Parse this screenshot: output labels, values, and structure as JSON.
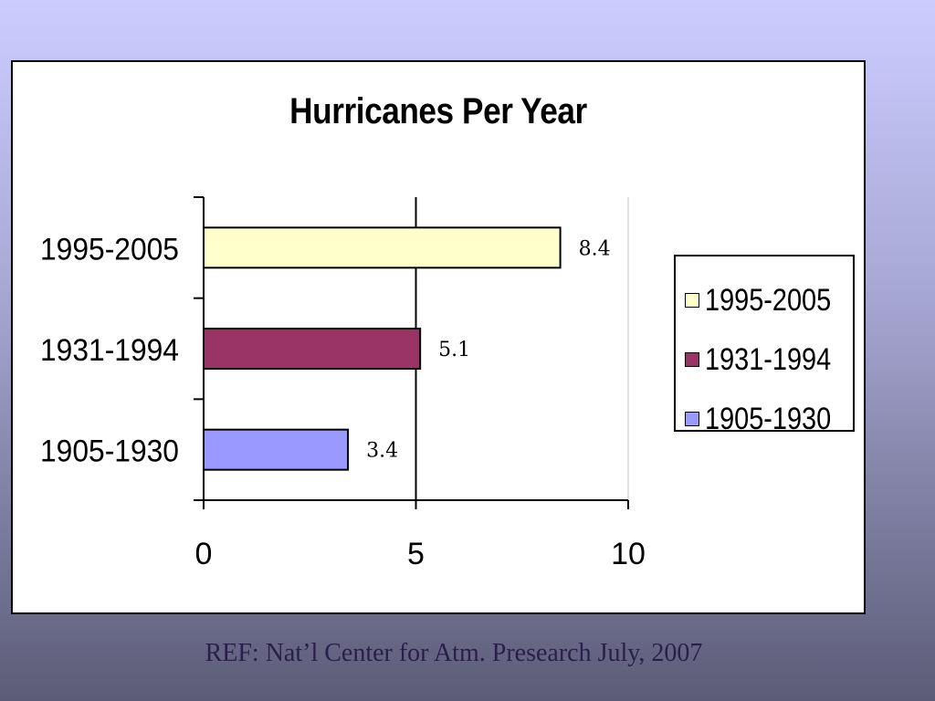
{
  "chart_data": {
    "type": "bar",
    "orientation": "horizontal",
    "title": "Hurricanes Per Year",
    "categories": [
      "1995-2005",
      "1931-1994",
      "1905-1930"
    ],
    "values": [
      8.4,
      5.1,
      3.4
    ],
    "colors": [
      "#ffffcc",
      "#993366",
      "#9999ff"
    ],
    "data_labels": [
      "8.4",
      "5.1",
      "3.4"
    ],
    "xlim": [
      0,
      10
    ],
    "x_ticks": [
      "0",
      "5",
      "10"
    ],
    "gridlines": [
      5
    ],
    "xlabel": "",
    "ylabel": "",
    "legend": {
      "position": "right",
      "entries": [
        "1995-2005",
        "1931-1994",
        "1905-1930"
      ]
    }
  },
  "caption": "REF: Nat’l Center for Atm. Presearch July, 2007"
}
